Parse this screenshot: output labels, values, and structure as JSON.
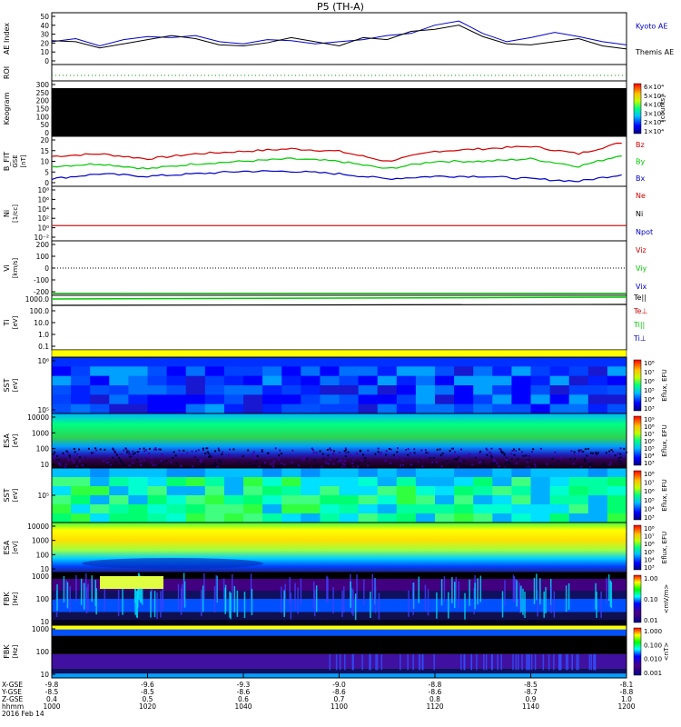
{
  "title": "P5 (TH-A)",
  "colors": {
    "blue": "#0000c8",
    "green": "#00c800",
    "red": "#d00000",
    "black": "#000000",
    "yellow": "#ffff00"
  },
  "panels": {
    "ae": {
      "ylabel": "AE Index",
      "ticks": [
        "50",
        "40",
        "30",
        "20",
        "10",
        "0"
      ],
      "legend": [
        "Kyoto AE",
        "Themis AE"
      ]
    },
    "roi": {
      "ylabel": "ROI"
    },
    "keogram": {
      "ylabel": "Keogram",
      "ticks": [
        "300",
        "250",
        "200",
        "150",
        "100",
        "50",
        "0"
      ],
      "colorbar_ticks": [
        "6×10⁴",
        "5×10⁴",
        "4×10⁴",
        "3×10⁴",
        "2×10⁴",
        "1×10⁴"
      ],
      "colorbar_label": "[counts]"
    },
    "bfit": {
      "ylabel": "B_FIT",
      "ylabel2": "GSE",
      "ylabel3": "[nT]",
      "ticks": [
        "20",
        "15",
        "10",
        "5",
        "0"
      ],
      "legend": [
        "Bz",
        "By",
        "Bx"
      ]
    },
    "ni": {
      "ylabel": "Ni",
      "ylabel2": "[1/cc]",
      "ticks": [
        "10⁸",
        "10⁶",
        "10⁴",
        "10²",
        "10⁰",
        "10⁻²"
      ],
      "legend": [
        "Ne",
        "Ni",
        "Npot"
      ]
    },
    "vi": {
      "ylabel": "Vi",
      "ylabel2": "[km/s]",
      "ticks": [
        "200",
        "100",
        "0",
        "-100",
        "-200"
      ],
      "legend": [
        "Viz",
        "Viy",
        "Vix"
      ]
    },
    "ti": {
      "ylabel": "Ti",
      "ylabel2": "[eV]",
      "ticks": [
        "1000.0",
        "100.0",
        "10.0",
        "1.0",
        "0.1"
      ],
      "legend": [
        "Te||",
        "Te⊥",
        "Ti||",
        "Ti⊥"
      ]
    },
    "sst1": {
      "ylabel": "SST",
      "ylabel2": "[eV]",
      "ticks": [
        "10⁶",
        "10⁵"
      ],
      "colorbar_ticks": [
        "10⁸",
        "10⁷",
        "10⁶",
        "10⁵",
        "10⁴",
        "10³"
      ],
      "colorbar_label": "Eflux, EFU"
    },
    "esa1": {
      "ylabel": "ESA",
      "ylabel2": "[eV]",
      "ticks": [
        "10000",
        "1000",
        "100",
        "10"
      ],
      "colorbar_ticks": [
        "10⁹",
        "10⁸",
        "10⁷",
        "10⁶",
        "10⁵",
        "10⁴",
        "10³"
      ],
      "colorbar_label": "Eflux, EFU"
    },
    "sst2": {
      "ylabel": "SST",
      "ylabel2": "[eV]",
      "ticks": [
        "10⁵"
      ],
      "colorbar_ticks": [
        "10⁸",
        "10⁷",
        "10⁶",
        "10⁵",
        "10⁴",
        "10³"
      ],
      "colorbar_label": "Eflux, EFU"
    },
    "esa2": {
      "ylabel": "ESA",
      "ylabel2": "[eV]",
      "ticks": [
        "10000",
        "1000",
        "100",
        "10"
      ],
      "colorbar_ticks": [
        "10⁸",
        "10⁷",
        "10⁶",
        "10⁵",
        "10⁴",
        "10³"
      ],
      "colorbar_label": "Eflux, EFU"
    },
    "fbk1": {
      "ylabel": "FBK",
      "ylabel2": "[Hz]",
      "ticks": [
        "1000",
        "100",
        "10"
      ],
      "colorbar_ticks": [
        "1.00",
        "0.10",
        "0.01"
      ],
      "colorbar_label": "<mV/m>"
    },
    "fbk2": {
      "ylabel": "FBK",
      "ylabel2": "[Hz]",
      "ticks": [
        "1000",
        "100",
        "10"
      ],
      "colorbar_ticks": [
        "1.000",
        "0.100",
        "0.010",
        "0.001"
      ],
      "colorbar_label": "<nT>"
    }
  },
  "xaxis": {
    "row_labels": [
      "X-GSE",
      "Y-GSE",
      "Z-GSE",
      "hhmm",
      "2016 Feb 14"
    ],
    "ticks": [
      {
        "x": "-9.8",
        "y": "-8.5",
        "z": "0.4",
        "t": "1000"
      },
      {
        "x": "-9.6",
        "y": "-8.5",
        "z": "0.5",
        "t": "1020"
      },
      {
        "x": "-9.3",
        "y": "-8.6",
        "z": "0.6",
        "t": "1040"
      },
      {
        "x": "-9.0",
        "y": "-8.6",
        "z": "0.7",
        "t": "1100"
      },
      {
        "x": "-8.8",
        "y": "-8.6",
        "z": "0.8",
        "t": "1120"
      },
      {
        "x": "-8.5",
        "y": "-8.7",
        "z": "0.9",
        "t": "1140"
      },
      {
        "x": "-8.1",
        "y": "-8.8",
        "z": "1.0",
        "t": "1200"
      }
    ]
  },
  "chart_data": [
    {
      "type": "line",
      "ylabel": "AE Index",
      "ylim": [
        0,
        50
      ],
      "x": [
        1000,
        1005,
        1010,
        1015,
        1020,
        1025,
        1030,
        1035,
        1040,
        1045,
        1050,
        1055,
        1100,
        1105,
        1110,
        1115,
        1120,
        1125,
        1130,
        1135,
        1140,
        1145,
        1150,
        1155,
        1200
      ],
      "series": [
        {
          "name": "Kyoto AE",
          "color": "blue",
          "values": [
            22,
            25,
            18,
            24,
            27,
            26,
            28,
            22,
            20,
            24,
            23,
            20,
            22,
            24,
            28,
            30,
            38,
            42,
            30,
            22,
            26,
            31,
            27,
            22,
            19
          ]
        },
        {
          "name": "Themis AE",
          "color": "black",
          "values": [
            23,
            22,
            16,
            20,
            24,
            28,
            25,
            19,
            18,
            21,
            26,
            22,
            18,
            26,
            24,
            32,
            34,
            38,
            27,
            20,
            19,
            22,
            25,
            18,
            15
          ]
        }
      ]
    },
    {
      "type": "line",
      "ylabel": "B_FIT GSE [nT]",
      "ylim": [
        0,
        20
      ],
      "x": [
        1000,
        1010,
        1020,
        1030,
        1040,
        1050,
        1100,
        1110,
        1120,
        1130,
        1140,
        1150,
        1200
      ],
      "series": [
        {
          "name": "Bz",
          "color": "red",
          "values": [
            12,
            13,
            11,
            13,
            14,
            15,
            14,
            10,
            14,
            15,
            16,
            13,
            18
          ]
        },
        {
          "name": "By",
          "color": "green",
          "values": [
            8,
            9,
            7,
            9,
            10,
            11,
            10,
            7,
            10,
            10,
            11,
            8,
            13
          ]
        },
        {
          "name": "Bx",
          "color": "blue",
          "values": [
            3,
            5,
            4,
            5,
            6,
            6,
            5,
            3,
            4,
            4,
            3,
            2,
            5
          ]
        }
      ]
    },
    {
      "type": "line",
      "ylabel": "Ti [eV]",
      "yscale": "log",
      "ylim": [
        0.1,
        3000
      ],
      "x": [
        1000,
        1200
      ],
      "series": [
        {
          "name": "Ti||",
          "color": "green",
          "values": [
            2000,
            2400
          ]
        },
        {
          "name": "Te||",
          "color": "black",
          "values": [
            1000,
            1100
          ]
        }
      ]
    }
  ]
}
